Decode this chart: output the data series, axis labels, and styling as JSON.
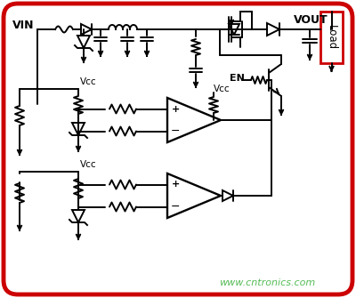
{
  "bg_color": "#ffffff",
  "border_color": "#cc0000",
  "border_lw": 3.5,
  "lc": "#000000",
  "lw": 1.4,
  "label_vin": "VIN",
  "label_vout": "VOUT",
  "label_vcc": "Vcc",
  "label_en": "EN",
  "label_load": "Load",
  "label_watermark": "www.cntronics.com",
  "watermark_color": "#55bb55",
  "load_border_color": "#cc0000",
  "fig_w": 4.0,
  "fig_h": 3.35,
  "dpi": 100
}
